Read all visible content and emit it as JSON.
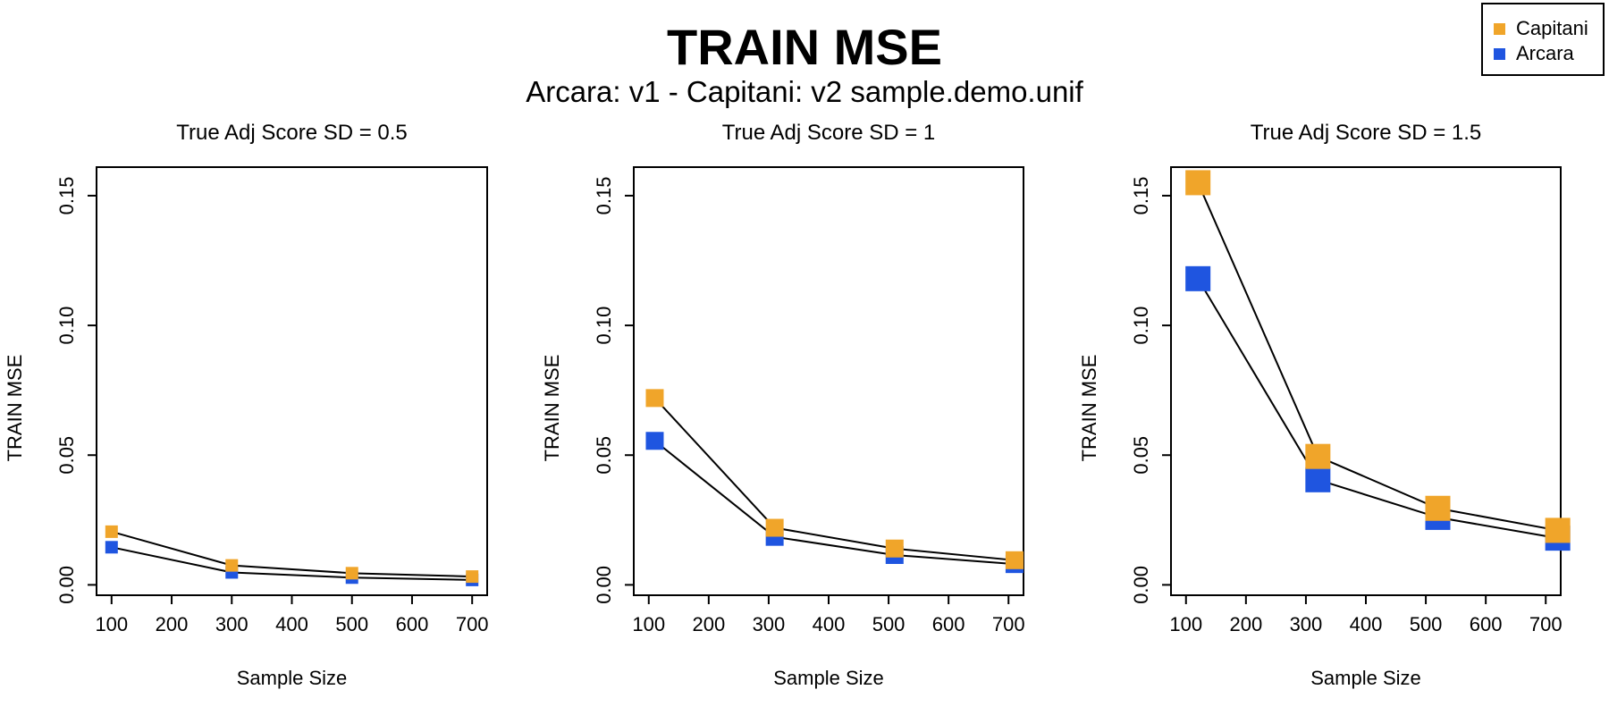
{
  "title": "TRAIN MSE",
  "subtitle": "Arcara: v1 - Capitani: v2 sample.demo.unif",
  "legend": {
    "items": [
      {
        "label": "Capitani",
        "color": "#f0a52a"
      },
      {
        "label": "Arcara",
        "color": "#1f55e0"
      }
    ],
    "placement": "top-right"
  },
  "colors": {
    "capitani": "#f0a52a",
    "arcara": "#1f55e0"
  },
  "chart_data": [
    {
      "type": "line",
      "title": "True Adj Score SD = 0.5",
      "xlabel": "Sample Size",
      "ylabel": "TRAIN MSE",
      "xlim": [
        75,
        725
      ],
      "ylim": [
        -0.004,
        0.161
      ],
      "xticks": [
        "100",
        "200",
        "300",
        "400",
        "500",
        "600",
        "700"
      ],
      "yticks": [
        "0.00",
        "0.05",
        "0.10",
        "0.15"
      ],
      "series": [
        {
          "name": "Capitani",
          "color": "#f0a52a",
          "x": [
            100,
            300,
            500,
            700
          ],
          "y": [
            0.0205,
            0.0075,
            0.0045,
            0.0032
          ]
        },
        {
          "name": "Arcara",
          "color": "#1f55e0",
          "x": [
            100,
            300,
            500,
            700
          ],
          "y": [
            0.0145,
            0.0048,
            0.0028,
            0.0019
          ]
        }
      ]
    },
    {
      "type": "line",
      "title": "True Adj Score SD = 1",
      "xlabel": "Sample Size",
      "ylabel": "TRAIN MSE",
      "xlim": [
        75,
        725
      ],
      "ylim": [
        -0.004,
        0.161
      ],
      "xticks": [
        "100",
        "200",
        "300",
        "400",
        "500",
        "600",
        "700"
      ],
      "yticks": [
        "0.00",
        "0.05",
        "0.10",
        "0.15"
      ],
      "series": [
        {
          "name": "Capitani",
          "color": "#f0a52a",
          "x": [
            110,
            310,
            510,
            710
          ],
          "y": [
            0.072,
            0.022,
            0.014,
            0.0095
          ]
        },
        {
          "name": "Arcara",
          "color": "#1f55e0",
          "x": [
            110,
            310,
            510,
            710
          ],
          "y": [
            0.0555,
            0.0185,
            0.0115,
            0.008
          ]
        }
      ]
    },
    {
      "type": "line",
      "title": "True Adj Score SD = 1.5",
      "xlabel": "Sample Size",
      "ylabel": "TRAIN MSE",
      "xlim": [
        75,
        725
      ],
      "ylim": [
        -0.004,
        0.161
      ],
      "xticks": [
        "100",
        "200",
        "300",
        "400",
        "500",
        "600",
        "700"
      ],
      "yticks": [
        "0.00",
        "0.05",
        "0.10",
        "0.15"
      ],
      "series": [
        {
          "name": "Capitani",
          "color": "#f0a52a",
          "x": [
            120,
            320,
            520,
            720
          ],
          "y": [
            0.155,
            0.0495,
            0.0295,
            0.021
          ]
        },
        {
          "name": "Arcara",
          "color": "#1f55e0",
          "x": [
            120,
            320,
            520,
            720
          ],
          "y": [
            0.118,
            0.0405,
            0.026,
            0.018
          ]
        }
      ]
    }
  ]
}
